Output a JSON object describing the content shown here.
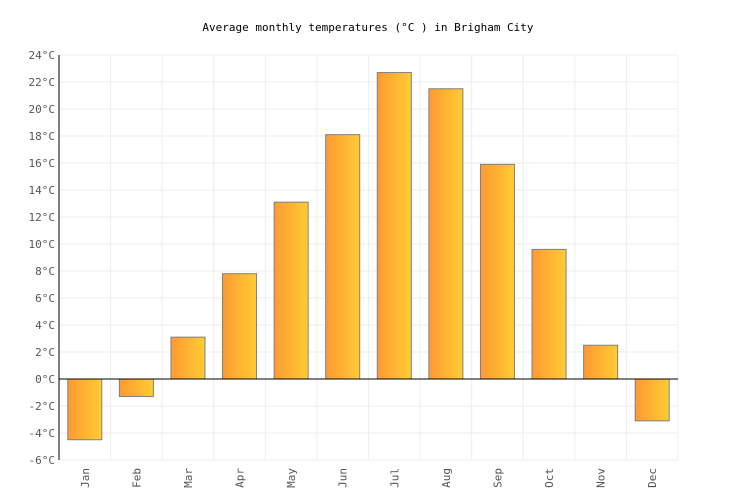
{
  "chart_data": {
    "type": "bar",
    "title": "Average monthly temperatures (°C ) in Brigham City",
    "categories": [
      "Jan",
      "Feb",
      "Mar",
      "Apr",
      "May",
      "Jun",
      "Jul",
      "Aug",
      "Sep",
      "Oct",
      "Nov",
      "Dec"
    ],
    "values": [
      -4.5,
      -1.3,
      3.1,
      7.8,
      13.1,
      18.1,
      22.7,
      21.5,
      15.9,
      9.6,
      2.5,
      -3.1
    ],
    "unit": "°C",
    "ylim": [
      -6,
      24
    ],
    "yticks": [
      -6,
      -4,
      -2,
      0,
      2,
      4,
      6,
      8,
      10,
      12,
      14,
      16,
      18,
      20,
      22,
      24
    ],
    "ytick_labels": [
      "-6°C",
      "-4°C",
      "-2°C",
      "0°C",
      "2°C",
      "4°C",
      "6°C",
      "8°C",
      "10°C",
      "12°C",
      "14°C",
      "16°C",
      "18°C",
      "20°C",
      "22°C",
      "24°C"
    ],
    "grid": true,
    "colors": {
      "bar_start": "#ff9933",
      "bar_end": "#ffcc33",
      "bar_stroke": "#808080",
      "grid": "#eeeeee",
      "axis": "#000000"
    }
  }
}
